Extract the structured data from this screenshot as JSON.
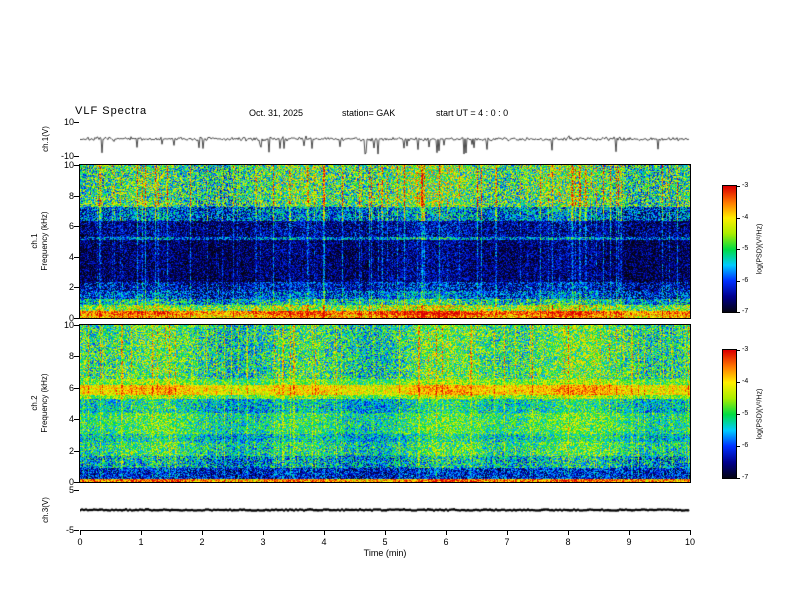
{
  "header": {
    "title": "VLF  Spectra",
    "date": "Oct. 31, 2025",
    "station": "station= GAK",
    "start_ut": "start UT =  4 : 0 : 0"
  },
  "xaxis": {
    "label": "Time (min)",
    "range": [
      0,
      10
    ],
    "ticks": [
      0,
      1,
      2,
      3,
      4,
      5,
      6,
      7,
      8,
      9,
      10
    ]
  },
  "colormap": [
    "#050510",
    "#00008c",
    "#0030ff",
    "#00ccff",
    "#00dd44",
    "#aaee00",
    "#ffee00",
    "#ff7700",
    "#dd0000"
  ],
  "chart_data": [
    {
      "id": "ch1_wave",
      "type": "line",
      "ylabel": "ch.1(V)",
      "ylim": [
        -10,
        10
      ],
      "yticks": [
        10,
        -10
      ],
      "signal": {
        "seed": 7,
        "noise_amp": 0.9,
        "spike_count": 38,
        "spike_min": -9,
        "spike_max": -2.5,
        "pos_spike_count": 7,
        "pos_spike_max": 3
      }
    },
    {
      "id": "ch1_spec",
      "type": "heatmap",
      "ylabel_lines": [
        "ch.1",
        "Frequency (kHz)"
      ],
      "ylim": [
        0,
        10
      ],
      "yticks": [
        0,
        2,
        4,
        6,
        8,
        10
      ],
      "zlabel": "log(PSD)(V²/Hz)",
      "zlim": [
        -7,
        -3
      ],
      "zticks": [
        -3,
        -4,
        -5,
        -6,
        -7
      ],
      "seed": 11,
      "profile": [
        {
          "f0": 0.0,
          "f1": 0.2,
          "v": 0.82,
          "n": 0.2
        },
        {
          "f0": 0.2,
          "f1": 0.5,
          "v": 0.9,
          "n": 0.18
        },
        {
          "f0": 0.5,
          "f1": 0.85,
          "v": 0.62,
          "n": 0.25
        },
        {
          "f0": 0.85,
          "f1": 1.25,
          "v": 0.42,
          "n": 0.25
        },
        {
          "f0": 1.25,
          "f1": 1.8,
          "v": 0.26,
          "n": 0.22
        },
        {
          "f0": 1.8,
          "f1": 2.4,
          "v": 0.18,
          "n": 0.2
        },
        {
          "f0": 2.4,
          "f1": 5.15,
          "v": 0.09,
          "n": 0.16
        },
        {
          "f0": 5.15,
          "f1": 5.35,
          "v": 0.3,
          "n": 0.22
        },
        {
          "f0": 5.35,
          "f1": 6.4,
          "v": 0.13,
          "n": 0.18
        },
        {
          "f0": 6.4,
          "f1": 7.3,
          "v": 0.3,
          "n": 0.25
        },
        {
          "f0": 7.3,
          "f1": 10.0,
          "v": 0.52,
          "n": 0.3
        }
      ],
      "streaks": {
        "prob": 0.2,
        "max": 0.42,
        "hi_f": 6.4,
        "hi_weight": 0.95,
        "lo_weight": 0.5
      }
    },
    {
      "id": "ch2_spec",
      "type": "heatmap",
      "ylabel_lines": [
        "ch.2",
        "Frequency (kHz)"
      ],
      "ylim": [
        0,
        10
      ],
      "yticks": [
        0,
        2,
        4,
        6,
        8,
        10
      ],
      "zlabel": "log(PSD)(V²/Hz)",
      "zlim": [
        -7,
        -3
      ],
      "zticks": [
        -3,
        -4,
        -5,
        -6,
        -7
      ],
      "seed": 23,
      "profile": [
        {
          "f0": 0.0,
          "f1": 0.22,
          "v": 0.85,
          "n": 0.2
        },
        {
          "f0": 0.22,
          "f1": 0.9,
          "v": 0.2,
          "n": 0.2
        },
        {
          "f0": 0.9,
          "f1": 1.7,
          "v": 0.38,
          "n": 0.25
        },
        {
          "f0": 1.7,
          "f1": 2.6,
          "v": 0.48,
          "n": 0.22
        },
        {
          "f0": 2.6,
          "f1": 3.1,
          "v": 0.42,
          "n": 0.2
        },
        {
          "f0": 3.1,
          "f1": 4.4,
          "v": 0.5,
          "n": 0.2
        },
        {
          "f0": 4.4,
          "f1": 5.3,
          "v": 0.42,
          "n": 0.2
        },
        {
          "f0": 5.3,
          "f1": 5.6,
          "v": 0.6,
          "n": 0.18
        },
        {
          "f0": 5.6,
          "f1": 6.2,
          "v": 0.76,
          "n": 0.15
        },
        {
          "f0": 6.2,
          "f1": 6.6,
          "v": 0.58,
          "n": 0.18
        },
        {
          "f0": 6.6,
          "f1": 10.0,
          "v": 0.5,
          "n": 0.25
        }
      ],
      "streaks": {
        "prob": 0.18,
        "max": 0.35,
        "hi_f": 6.6,
        "hi_weight": 0.8,
        "lo_weight": 0.45
      }
    },
    {
      "id": "ch3_wave",
      "type": "line",
      "ylabel": "ch.3(V)",
      "ylim": [
        -5,
        5
      ],
      "yticks": [
        5,
        -5
      ],
      "signal": {
        "seed": 3
      }
    }
  ]
}
